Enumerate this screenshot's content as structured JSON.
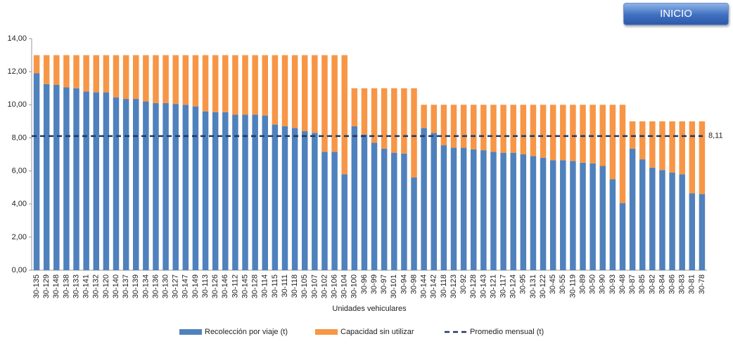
{
  "nav_button": "INICIO",
  "chart_data": {
    "type": "stacked_bar",
    "x_label": "Unidades vehiculares",
    "categories": [
      "30-135",
      "30-129",
      "30-148",
      "30-138",
      "30-133",
      "30-141",
      "30-132",
      "30-120",
      "30-140",
      "30-137",
      "30-139",
      "30-134",
      "30-136",
      "30-130",
      "30-127",
      "30-147",
      "30-149",
      "30-113",
      "30-126",
      "30-146",
      "30-112",
      "30-145",
      "30-128",
      "30-114",
      "30-115",
      "30-111",
      "30-118",
      "30-105",
      "30-107",
      "30-102",
      "30-106",
      "30-104",
      "30-100",
      "30-96",
      "30-99",
      "30-97",
      "30-101",
      "30-94",
      "30-98",
      "30-144",
      "30-142",
      "30-118",
      "30-123",
      "30-92",
      "30-128",
      "30-143",
      "30-121",
      "30-117",
      "30-124",
      "30-95",
      "30-131",
      "30-122",
      "30-45",
      "30-55",
      "30-119",
      "30-89",
      "30-50",
      "30-90",
      "30-93",
      "30-48",
      "30-87",
      "30-85",
      "30-82",
      "30-84",
      "30-86",
      "30-83",
      "30-81",
      "30-78"
    ],
    "series": [
      {
        "name": "Recolección por viaje (t)",
        "color": "#4f81bd",
        "values": [
          11.9,
          11.25,
          11.2,
          11.05,
          11.0,
          10.8,
          10.75,
          10.75,
          10.45,
          10.35,
          10.35,
          10.2,
          10.1,
          10.1,
          10.05,
          10.0,
          9.9,
          9.6,
          9.55,
          9.55,
          9.4,
          9.4,
          9.4,
          9.35,
          8.8,
          8.7,
          8.6,
          8.4,
          8.3,
          7.15,
          7.15,
          5.8,
          8.7,
          8.2,
          7.7,
          7.35,
          7.1,
          7.05,
          5.6,
          8.6,
          8.3,
          7.55,
          7.4,
          7.4,
          7.3,
          7.25,
          7.15,
          7.1,
          7.1,
          7.0,
          6.9,
          6.8,
          6.65,
          6.65,
          6.6,
          6.5,
          6.45,
          6.3,
          5.5,
          4.05,
          7.35,
          6.7,
          6.2,
          6.05,
          5.9,
          5.8,
          4.65,
          4.6
        ]
      },
      {
        "name": "Capacidad sin utilizar",
        "color": "#f79646",
        "values": [
          1.1,
          1.75,
          1.8,
          1.95,
          2.0,
          2.2,
          2.25,
          2.25,
          2.55,
          2.65,
          2.65,
          2.8,
          2.9,
          2.9,
          2.95,
          3.0,
          3.1,
          3.4,
          3.45,
          3.45,
          3.6,
          3.6,
          3.6,
          3.65,
          4.2,
          4.3,
          4.4,
          4.6,
          4.7,
          5.85,
          5.85,
          7.2,
          2.3,
          2.8,
          3.3,
          3.65,
          3.9,
          3.95,
          5.4,
          1.4,
          1.7,
          2.45,
          2.6,
          2.6,
          2.7,
          2.75,
          2.85,
          2.9,
          2.9,
          3.0,
          3.1,
          3.2,
          3.35,
          3.35,
          3.4,
          3.5,
          3.55,
          3.7,
          4.5,
          5.95,
          1.65,
          2.3,
          2.8,
          2.95,
          3.1,
          3.2,
          4.35,
          4.4
        ]
      }
    ],
    "reference_line": {
      "name": "Promedio mensual (t)",
      "value": 8.11,
      "value_label": "8,11",
      "color": "#1f3864"
    },
    "ylim": [
      0,
      14
    ],
    "yticks": [
      {
        "value": 0,
        "label": "0,00"
      },
      {
        "value": 2,
        "label": "2,00"
      },
      {
        "value": 4,
        "label": "4,00"
      },
      {
        "value": 6,
        "label": "6,00"
      },
      {
        "value": 8,
        "label": "8,00"
      },
      {
        "value": 10,
        "label": "10,00"
      },
      {
        "value": 12,
        "label": "12,00"
      },
      {
        "value": 14,
        "label": "14,00"
      }
    ],
    "grid": false
  }
}
